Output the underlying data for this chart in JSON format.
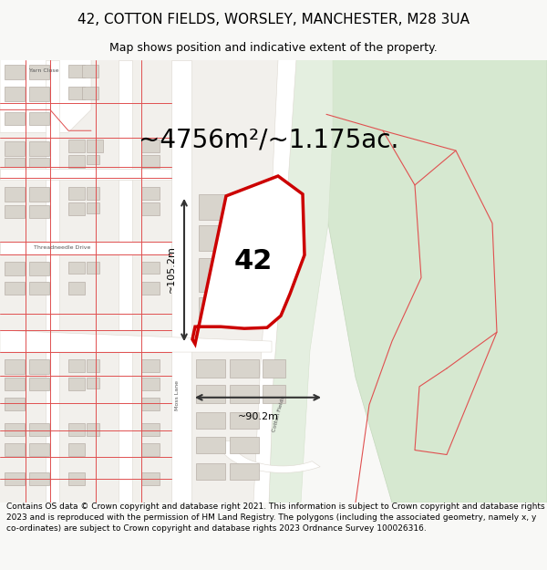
{
  "title": "42, COTTON FIELDS, WORSLEY, MANCHESTER, M28 3UA",
  "subtitle": "Map shows position and indicative extent of the property.",
  "area_label": "~4756m²/~1.175ac.",
  "number_label": "42",
  "dim_horizontal": "~90.2m",
  "dim_vertical": "~105.2m",
  "footer": "Contains OS data © Crown copyright and database right 2021. This information is subject to Crown copyright and database rights 2023 and is reproduced with the permission of HM Land Registry. The polygons (including the associated geometry, namely x, y co-ordinates) are subject to Crown copyright and database rights 2023 Ordnance Survey 100026316.",
  "bg_color": "#f2f0ec",
  "title_fontsize": 11,
  "subtitle_fontsize": 9,
  "area_fontsize": 20,
  "number_fontsize": 22,
  "footer_fontsize": 6.5,
  "green_color": "#d6e8d0",
  "green_edge": "#c4d8bc",
  "road_color": "#ffffff",
  "building_color": "#d8d4cc",
  "building_edge": "#b8b0a8",
  "red_line": "#e05050",
  "property_edge": "#cc0000",
  "dim_color": "#333333"
}
